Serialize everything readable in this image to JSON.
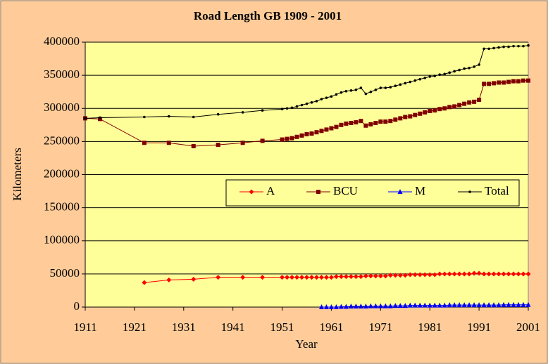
{
  "chart_data": {
    "type": "line",
    "title": "Road Length GB 1909 - 2001",
    "x_label": "Year",
    "y_label": "Kilometers",
    "x": [
      1911,
      1914,
      1923,
      1928,
      1933,
      1938,
      1943,
      1947,
      1951,
      1952,
      1953,
      1954,
      1955,
      1956,
      1957,
      1958,
      1959,
      1960,
      1961,
      1962,
      1963,
      1964,
      1965,
      1966,
      1967,
      1968,
      1969,
      1970,
      1971,
      1972,
      1973,
      1974,
      1975,
      1976,
      1977,
      1978,
      1979,
      1980,
      1981,
      1982,
      1983,
      1984,
      1985,
      1986,
      1987,
      1988,
      1989,
      1990,
      1991,
      1992,
      1993,
      1994,
      1995,
      1996,
      1997,
      1998,
      1999,
      2000,
      2001
    ],
    "series": [
      {
        "name": "A",
        "color": "#ff0000",
        "marker": "diamond",
        "values": [
          null,
          null,
          37000,
          41000,
          42000,
          45000,
          45000,
          45000,
          45000,
          45000,
          45000,
          45000,
          45000,
          45000,
          45000,
          45000,
          45000,
          45000,
          45000,
          46000,
          46000,
          46000,
          46000,
          46000,
          46000,
          47000,
          47000,
          47000,
          47000,
          47000,
          48000,
          48000,
          48000,
          48000,
          49000,
          49000,
          49000,
          49000,
          49000,
          49000,
          50000,
          50000,
          50000,
          50000,
          50000,
          50000,
          50000,
          51000,
          51000,
          50000,
          50000,
          50000,
          50000,
          50000,
          50000,
          50000,
          50000,
          50000,
          50000
        ]
      },
      {
        "name": "BCU",
        "color": "#800000",
        "marker": "square",
        "values": [
          285000,
          284000,
          248000,
          248000,
          243000,
          245000,
          248000,
          251000,
          253000,
          254000,
          255000,
          257000,
          259000,
          261000,
          262000,
          264000,
          266000,
          268000,
          270000,
          272000,
          275000,
          277000,
          278000,
          279000,
          281000,
          274000,
          276000,
          278000,
          280000,
          280000,
          281000,
          283000,
          285000,
          287000,
          288000,
          290000,
          292000,
          294000,
          296000,
          297000,
          299000,
          300000,
          302000,
          303000,
          305000,
          307000,
          309000,
          310000,
          313000,
          337000,
          337000,
          338000,
          339000,
          339000,
          340000,
          341000,
          341000,
          342000,
          342000
        ]
      },
      {
        "name": "M",
        "color": "#0000ff",
        "marker": "triangle",
        "values": [
          null,
          null,
          null,
          null,
          null,
          null,
          null,
          null,
          null,
          null,
          null,
          null,
          null,
          null,
          null,
          null,
          0,
          0,
          0,
          0,
          500,
          500,
          1000,
          1000,
          1000,
          1000,
          1500,
          1500,
          1500,
          1500,
          1500,
          2000,
          2000,
          2000,
          2500,
          2500,
          2500,
          2500,
          2500,
          2500,
          2500,
          2500,
          3000,
          3000,
          3000,
          3000,
          3000,
          3000,
          3000,
          3000,
          3000,
          3000,
          3000,
          3500,
          3500,
          3500,
          3500,
          3500,
          3500
        ]
      },
      {
        "name": "Total",
        "color": "#000000",
        "marker": "dot",
        "values": [
          285000,
          286000,
          287000,
          288000,
          287000,
          291000,
          294000,
          297000,
          299000,
          300000,
          301000,
          303000,
          305000,
          307000,
          309000,
          311000,
          314000,
          316000,
          318000,
          321000,
          324000,
          326000,
          327000,
          328000,
          331000,
          322000,
          325000,
          328000,
          331000,
          331000,
          332000,
          334000,
          336000,
          338000,
          340000,
          342000,
          344000,
          346000,
          348000,
          349000,
          351000,
          352000,
          354000,
          356000,
          358000,
          360000,
          361000,
          363000,
          366000,
          390000,
          390000,
          391000,
          392000,
          393000,
          393000,
          394000,
          394000,
          394000,
          395000
        ]
      }
    ],
    "xlim": [
      1911,
      2001
    ],
    "xticks": [
      1911,
      1921,
      1931,
      1941,
      1951,
      1961,
      1971,
      1981,
      1991,
      2001
    ],
    "ylim": [
      0,
      400000
    ],
    "yticks": [
      0,
      50000,
      100000,
      150000,
      200000,
      250000,
      300000,
      350000,
      400000
    ],
    "grid": true,
    "legend": "right"
  }
}
